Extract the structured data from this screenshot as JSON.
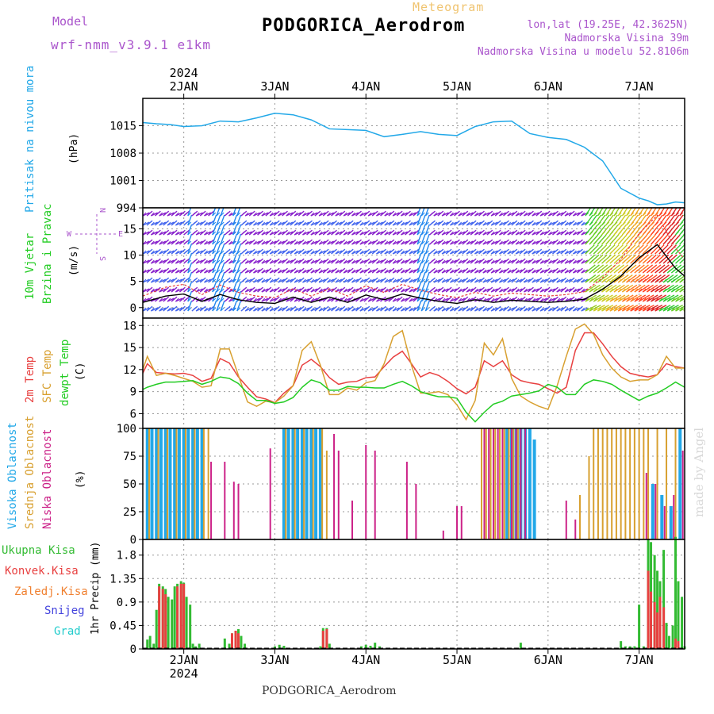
{
  "header": {
    "model_label": "Model",
    "model_name": "wrf-nmm_v3.9.1 e1km",
    "meteogram_label": "Meteogram",
    "station_title": "PODGORICA_Aerodrom",
    "lonlat": "lon,lat (19.25E, 42.3625N)",
    "elevation": "Nadmorska Visina 39m",
    "model_elevation": "Nadmorska Visina u modelu 52.8106m"
  },
  "footer": {
    "station": "PODGORICA_Aerodrom"
  },
  "watermark": "made by Angel",
  "time_axis": {
    "year": "2024",
    "days": [
      "2JAN",
      "3JAN",
      "4JAN",
      "5JAN",
      "6JAN",
      "7JAN"
    ],
    "range_days": [
      1.55,
      7.5
    ]
  },
  "colors": {
    "pressure": "#22a8e8",
    "temp2m": "#e84040",
    "sfc": "#d8a030",
    "dewpt": "#22cc22",
    "high_cloud": "#22a8e8",
    "mid_cloud": "#d8a030",
    "low_cloud": "#cc2288",
    "total_precip": "#33bb33",
    "conv_precip": "#e84040",
    "wind_violet": "#8822cc"
  },
  "panels": {
    "pressure": {
      "ylabel_left": "Pritisak na nivou mora",
      "unit": "(hPa)"
    },
    "wind": {
      "ylabel_left1": "10m Vjetar",
      "ylabel_left2": "Brzina i Pravac",
      "unit": "(m/s)",
      "compass": {
        "w": "W",
        "e": "E",
        "n": "N",
        "s": "S"
      }
    },
    "temp": {
      "l1": "2m Temp",
      "l2": "SFC Temp",
      "l3": "dewpt Temp",
      "unit": "(C)"
    },
    "cloud": {
      "l1": "Visoka Oblacnost",
      "l2": "Srednja Oblacnost",
      "l3": "Niska Oblacnost",
      "unit": "(%)"
    },
    "precip": {
      "legend": [
        "Ukupna Kisa",
        "Konvek.Kisa",
        "Zaledj.Kisa",
        "Snijeg",
        "Grad"
      ],
      "ylabel": "1hr Precip (mm)"
    }
  },
  "chart_data": [
    {
      "type": "line",
      "name": "pressure",
      "x_unit": "day of January 2024",
      "ylim": [
        994,
        1022
      ],
      "yticks": [
        994,
        1001,
        1008,
        1015
      ],
      "grid": true,
      "series": [
        {
          "x": [
            1.55,
            1.7,
            1.85,
            2.0,
            2.2,
            2.4,
            2.6,
            2.8,
            3.0,
            3.2,
            3.4,
            3.6,
            3.8,
            4.0,
            4.2,
            4.4,
            4.6,
            4.8,
            5.0,
            5.2,
            5.4,
            5.6,
            5.8,
            6.0,
            6.2,
            6.4,
            6.6,
            6.8,
            7.0,
            7.1,
            7.2,
            7.3,
            7.4,
            7.5
          ],
          "y": [
            1015.8,
            1015.5,
            1015.3,
            1014.8,
            1015.0,
            1016.2,
            1016.0,
            1017.0,
            1018.2,
            1017.8,
            1016.5,
            1014.2,
            1014.0,
            1013.8,
            1012.2,
            1012.8,
            1013.5,
            1012.8,
            1012.5,
            1014.8,
            1016.0,
            1016.2,
            1013.0,
            1012.0,
            1011.5,
            1009.5,
            1006.0,
            999.0,
            996.5,
            995.8,
            994.8,
            995.0,
            995.5,
            995.3
          ]
        }
      ]
    },
    {
      "type": "line",
      "name": "10m wind",
      "x_unit": "day of January 2024",
      "ylim": [
        -2,
        19
      ],
      "yticks": [
        0,
        5,
        10,
        15
      ],
      "grid": true,
      "series": [
        {
          "x": [
            1.55,
            1.8,
            2.0,
            2.2,
            2.4,
            2.6,
            2.8,
            3.0,
            3.2,
            3.4,
            3.6,
            3.8,
            4.0,
            4.2,
            4.4,
            4.6,
            4.8,
            5.0,
            5.2,
            5.4,
            5.6,
            5.8,
            6.0,
            6.2,
            6.4,
            6.6,
            6.8,
            7.0,
            7.2,
            7.4,
            7.5
          ],
          "y": [
            1.0,
            2.2,
            2.6,
            1.2,
            2.5,
            1.5,
            1.0,
            0.8,
            2.0,
            1.0,
            2.0,
            1.0,
            2.4,
            1.5,
            2.6,
            1.8,
            1.2,
            0.8,
            1.5,
            1.0,
            1.4,
            1.2,
            1.0,
            1.2,
            1.6,
            3.5,
            6.0,
            9.5,
            12.0,
            7.5,
            6.0
          ]
        }
      ]
    },
    {
      "type": "line",
      "name": "temperature",
      "x_unit": "day of January 2024",
      "ylim": [
        4,
        19
      ],
      "yticks": [
        6,
        9,
        12,
        15,
        18
      ],
      "grid": true,
      "series": [
        {
          "name": "2m Temp",
          "x": [
            1.55,
            1.6,
            1.7,
            1.8,
            1.9,
            2.0,
            2.1,
            2.2,
            2.3,
            2.4,
            2.5,
            2.6,
            2.7,
            2.8,
            2.9,
            3.0,
            3.1,
            3.2,
            3.3,
            3.4,
            3.5,
            3.6,
            3.7,
            3.8,
            3.9,
            4.0,
            4.1,
            4.2,
            4.3,
            4.4,
            4.5,
            4.6,
            4.7,
            4.8,
            4.9,
            5.0,
            5.1,
            5.2,
            5.3,
            5.4,
            5.5,
            5.6,
            5.7,
            5.8,
            5.9,
            6.0,
            6.1,
            6.2,
            6.3,
            6.4,
            6.5,
            6.6,
            6.7,
            6.8,
            6.9,
            7.0,
            7.1,
            7.2,
            7.3,
            7.4,
            7.5
          ],
          "y": [
            11.5,
            12.8,
            11.6,
            11.5,
            11.4,
            11.5,
            11.2,
            10.4,
            10.8,
            13.5,
            12.9,
            11.0,
            9.6,
            8.3,
            8.0,
            7.5,
            8.8,
            9.8,
            12.6,
            13.4,
            12.4,
            10.9,
            10.0,
            10.3,
            10.4,
            10.9,
            11.0,
            12.4,
            13.7,
            14.5,
            12.8,
            11.0,
            11.6,
            11.2,
            10.4,
            9.4,
            8.7,
            9.6,
            13.2,
            12.4,
            13.2,
            11.3,
            10.5,
            10.2,
            10.0,
            9.4,
            8.8,
            9.6,
            14.6,
            17.0,
            17.0,
            15.5,
            13.8,
            12.4,
            11.5,
            11.2,
            11.0,
            11.3,
            12.8,
            12.4,
            12.2
          ]
        },
        {
          "name": "SFC Temp",
          "x": [
            1.55,
            1.6,
            1.7,
            1.8,
            1.9,
            2.0,
            2.1,
            2.2,
            2.3,
            2.4,
            2.5,
            2.6,
            2.7,
            2.8,
            2.9,
            3.0,
            3.1,
            3.2,
            3.3,
            3.4,
            3.5,
            3.6,
            3.7,
            3.8,
            3.9,
            4.0,
            4.1,
            4.2,
            4.3,
            4.4,
            4.5,
            4.6,
            4.7,
            4.8,
            4.9,
            5.0,
            5.1,
            5.2,
            5.3,
            5.4,
            5.5,
            5.6,
            5.7,
            5.8,
            5.9,
            6.0,
            6.1,
            6.2,
            6.3,
            6.4,
            6.5,
            6.6,
            6.7,
            6.8,
            6.9,
            7.0,
            7.1,
            7.2,
            7.3,
            7.4,
            7.5
          ],
          "y": [
            12.0,
            13.8,
            11.2,
            11.5,
            11.2,
            10.8,
            10.4,
            9.6,
            9.8,
            14.8,
            14.8,
            11.2,
            7.6,
            7.0,
            7.7,
            7.5,
            8.4,
            9.8,
            14.6,
            15.8,
            12.6,
            8.6,
            8.6,
            9.5,
            9.2,
            10.2,
            10.5,
            12.8,
            16.5,
            17.3,
            12.6,
            8.8,
            8.8,
            9.0,
            8.6,
            7.2,
            5.2,
            7.8,
            15.6,
            14.0,
            16.2,
            10.8,
            8.4,
            7.6,
            7.0,
            6.6,
            9.8,
            13.8,
            17.5,
            18.2,
            16.8,
            14.0,
            12.2,
            11.0,
            10.4,
            10.6,
            10.6,
            11.3,
            13.8,
            12.2,
            12.2
          ]
        },
        {
          "name": "dewpt Temp",
          "x": [
            1.55,
            1.6,
            1.7,
            1.8,
            1.9,
            2.0,
            2.1,
            2.2,
            2.3,
            2.4,
            2.5,
            2.6,
            2.7,
            2.8,
            2.9,
            3.0,
            3.1,
            3.2,
            3.3,
            3.4,
            3.5,
            3.6,
            3.7,
            3.8,
            3.9,
            4.0,
            4.1,
            4.2,
            4.3,
            4.4,
            4.5,
            4.6,
            4.7,
            4.8,
            4.9,
            5.0,
            5.1,
            5.2,
            5.3,
            5.4,
            5.5,
            5.6,
            5.7,
            5.8,
            5.9,
            6.0,
            6.1,
            6.2,
            6.3,
            6.4,
            6.5,
            6.6,
            6.7,
            6.8,
            6.9,
            7.0,
            7.1,
            7.2,
            7.3,
            7.4,
            7.5
          ],
          "y": [
            9.3,
            9.6,
            10.0,
            10.3,
            10.3,
            10.4,
            10.5,
            10.0,
            10.4,
            11.0,
            10.8,
            10.1,
            8.8,
            7.8,
            7.8,
            7.4,
            7.6,
            8.2,
            9.6,
            10.6,
            10.2,
            9.2,
            9.2,
            9.7,
            9.6,
            9.6,
            9.5,
            9.5,
            10.0,
            10.4,
            9.8,
            9.0,
            8.6,
            8.3,
            8.3,
            8.1,
            6.2,
            4.9,
            6.2,
            7.3,
            7.7,
            8.4,
            8.6,
            8.8,
            9.1,
            10.0,
            9.6,
            8.6,
            8.6,
            10.0,
            10.6,
            10.4,
            10.0,
            9.2,
            8.5,
            7.8,
            8.4,
            8.8,
            9.5,
            10.3,
            9.6
          ]
        }
      ]
    },
    {
      "type": "bar",
      "name": "cloud cover",
      "x_unit": "day of January 2024",
      "ylim": [
        0,
        100
      ],
      "yticks": [
        0,
        25,
        50,
        75,
        100
      ],
      "grid": true,
      "series": [
        {
          "name": "Visoka Oblacnost",
          "x": [
            1.6,
            1.65,
            1.7,
            1.75,
            1.8,
            1.85,
            1.9,
            1.95,
            2.0,
            2.05,
            2.1,
            2.15,
            2.2,
            3.1,
            3.15,
            3.2,
            3.25,
            3.3,
            3.35,
            3.4,
            3.45,
            3.5,
            5.55,
            5.6,
            5.65,
            5.7,
            5.75,
            5.8,
            5.85,
            7.15,
            7.25,
            7.35,
            7.45
          ],
          "values": [
            100,
            100,
            100,
            100,
            100,
            100,
            100,
            100,
            100,
            100,
            100,
            100,
            100,
            100,
            100,
            100,
            100,
            100,
            100,
            100,
            100,
            100,
            100,
            100,
            100,
            100,
            100,
            100,
            90,
            50,
            40,
            30,
            100
          ]
        },
        {
          "name": "Srednja Oblacnost",
          "x": [
            1.62,
            1.72,
            1.82,
            1.92,
            2.02,
            2.12,
            2.22,
            2.27,
            3.12,
            3.22,
            3.32,
            3.42,
            3.52,
            3.57,
            5.27,
            5.32,
            5.37,
            5.42,
            5.47,
            5.52,
            5.57,
            5.62,
            5.67,
            6.35,
            6.45,
            6.5,
            6.55,
            6.6,
            6.65,
            6.7,
            6.75,
            6.8,
            6.85,
            6.9,
            6.95,
            7.0,
            7.05,
            7.1,
            7.2,
            7.3,
            7.4
          ],
          "values": [
            100,
            100,
            100,
            100,
            100,
            100,
            100,
            100,
            100,
            100,
            100,
            100,
            100,
            80,
            100,
            100,
            100,
            100,
            100,
            100,
            100,
            100,
            100,
            40,
            75,
            100,
            100,
            100,
            100,
            100,
            100,
            100,
            100,
            100,
            100,
            100,
            100,
            100,
            100,
            100,
            100
          ]
        },
        {
          "name": "Niska Oblacnost",
          "x": [
            2.3,
            2.45,
            2.55,
            2.6,
            2.95,
            3.65,
            3.7,
            3.85,
            4.0,
            4.1,
            4.45,
            4.55,
            4.85,
            5.0,
            5.05,
            5.3,
            5.35,
            5.4,
            5.45,
            5.5,
            5.6,
            5.65,
            5.7,
            5.75,
            6.2,
            6.3,
            7.08,
            7.18,
            7.28,
            7.38,
            7.48
          ],
          "values": [
            70,
            70,
            52,
            50,
            82,
            95,
            80,
            35,
            85,
            80,
            70,
            50,
            8,
            30,
            30,
            100,
            100,
            100,
            100,
            100,
            100,
            100,
            100,
            100,
            35,
            18,
            60,
            50,
            30,
            40,
            80
          ]
        }
      ]
    },
    {
      "type": "bar",
      "name": "1hr precipitation",
      "x_unit": "day of January 2024",
      "ylim": [
        0,
        2.1
      ],
      "yticks": [
        0,
        0.45,
        0.9,
        1.35,
        1.8
      ],
      "grid": true,
      "series": [
        {
          "name": "Ukupna Kisa",
          "x": [
            1.6,
            1.63,
            1.67,
            1.7,
            1.73,
            1.77,
            1.8,
            1.83,
            1.87,
            1.9,
            1.93,
            1.97,
            2.0,
            2.03,
            2.07,
            2.1,
            2.13,
            2.17,
            2.45,
            2.5,
            2.53,
            2.57,
            2.6,
            2.63,
            2.67,
            3.0,
            3.05,
            3.1,
            3.5,
            3.53,
            3.57,
            3.6,
            3.95,
            4.0,
            4.05,
            4.1,
            4.15,
            5.7,
            6.8,
            6.85,
            6.9,
            6.95,
            7.0,
            7.05,
            7.1,
            7.13,
            7.17,
            7.2,
            7.23,
            7.27,
            7.3,
            7.33,
            7.37,
            7.4,
            7.43,
            7.47,
            7.5
          ],
          "values": [
            0.18,
            0.25,
            0.1,
            0.75,
            1.25,
            1.2,
            1.15,
            1.0,
            0.95,
            1.2,
            1.25,
            1.3,
            1.27,
            1.0,
            0.85,
            0.1,
            0.05,
            0.1,
            0.2,
            0.1,
            0.3,
            0.35,
            0.38,
            0.25,
            0.1,
            0.05,
            0.08,
            0.06,
            0.05,
            0.4,
            0.4,
            0.1,
            0.05,
            0.08,
            0.06,
            0.12,
            0.05,
            0.12,
            0.15,
            0.05,
            0.05,
            0.05,
            0.85,
            0.05,
            2.1,
            2.05,
            1.8,
            1.5,
            1.3,
            1.9,
            0.5,
            0.25,
            0.45,
            2.15,
            1.3,
            1.0,
            0.05
          ]
        },
        {
          "name": "Konvek.Kisa",
          "x": [
            1.73,
            1.77,
            1.8,
            1.93,
            1.97,
            2.0,
            2.53,
            2.57,
            2.6,
            3.53,
            3.57,
            7.1,
            7.13,
            7.17,
            7.2,
            7.23,
            7.27,
            7.4,
            7.43
          ],
          "values": [
            1.2,
            1.15,
            1.05,
            1.2,
            1.25,
            1.25,
            0.3,
            0.35,
            0.3,
            0.35,
            0.38,
            1.5,
            1.1,
            0.9,
            0.7,
            1.0,
            0.8,
            0.2,
            0.15
          ]
        }
      ]
    }
  ]
}
